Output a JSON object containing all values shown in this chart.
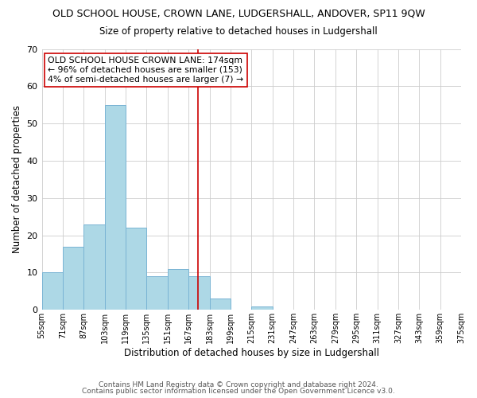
{
  "title": "OLD SCHOOL HOUSE, CROWN LANE, LUDGERSHALL, ANDOVER, SP11 9QW",
  "subtitle": "Size of property relative to detached houses in Ludgershall",
  "xlabel": "Distribution of detached houses by size in Ludgershall",
  "ylabel": "Number of detached properties",
  "bar_color": "#add8e6",
  "bar_edge_color": "#7ab4d4",
  "background_color": "#ffffff",
  "grid_color": "#cccccc",
  "bin_edges": [
    55,
    71,
    87,
    103,
    119,
    135,
    151,
    167,
    183,
    199,
    215,
    231,
    247,
    263,
    279,
    295,
    311,
    327,
    343,
    359,
    375
  ],
  "bin_labels": [
    "55sqm",
    "71sqm",
    "87sqm",
    "103sqm",
    "119sqm",
    "135sqm",
    "151sqm",
    "167sqm",
    "183sqm",
    "199sqm",
    "215sqm",
    "231sqm",
    "247sqm",
    "263sqm",
    "279sqm",
    "295sqm",
    "311sqm",
    "327sqm",
    "343sqm",
    "359sqm",
    "375sqm"
  ],
  "counts": [
    10,
    17,
    23,
    55,
    22,
    9,
    11,
    9,
    3,
    0,
    1,
    0,
    0,
    0,
    0,
    0,
    0,
    0,
    0,
    0
  ],
  "ylim": [
    0,
    70
  ],
  "yticks": [
    0,
    10,
    20,
    30,
    40,
    50,
    60,
    70
  ],
  "property_line_x": 174,
  "property_line_color": "#cc0000",
  "annotation_line1": "OLD SCHOOL HOUSE CROWN LANE: 174sqm",
  "annotation_line2": "← 96% of detached houses are smaller (153)",
  "annotation_line3": "4% of semi-detached houses are larger (7) →",
  "footer_line1": "Contains HM Land Registry data © Crown copyright and database right 2024.",
  "footer_line2": "Contains public sector information licensed under the Open Government Licence v3.0."
}
